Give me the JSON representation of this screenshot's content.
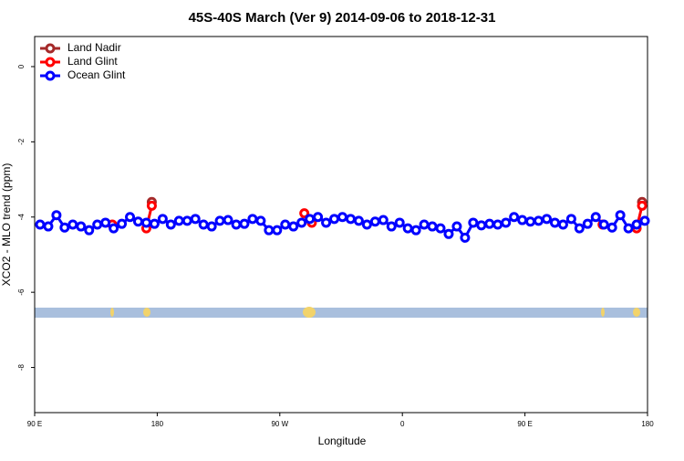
{
  "chart_data": {
    "type": "line",
    "title": "45S-40S March (Ver 9)   2014-09-06 to 2018-12-31",
    "x_label": "Longitude",
    "y_label": "XCO2 - MLO trend (ppm)",
    "xlim": [
      90,
      540
    ],
    "xticks": [
      {
        "value": 90,
        "label": "90 E"
      },
      180,
      {
        "value": 270,
        "label": "90 W"
      },
      {
        "value": 360,
        "label": "0"
      },
      {
        "value": 450,
        "label": "90 E"
      },
      {
        "value": 540,
        "label": "180"
      }
    ],
    "ylim": [
      -9.2,
      0.8
    ],
    "yticks": [
      0,
      -2,
      -4,
      -6,
      -8
    ],
    "legend": "top-left",
    "series": [
      {
        "name": "Land Nadir",
        "color": "#a52a2a",
        "x": [
          176,
          177,
          536
        ],
        "values": [
          -3.6,
          null,
          -3.6
        ]
      },
      {
        "name": "Land Glint",
        "color": "#ff0000",
        "x": [
          147,
          160,
          172,
          176,
          176.5,
          288,
          293.5,
          300,
          507,
          520,
          532,
          536
        ],
        "values": [
          -4.2,
          null,
          -4.3,
          -3.7,
          null,
          -3.9,
          -4.15,
          null,
          -4.2,
          null,
          -4.3,
          -3.7
        ]
      },
      {
        "name": "Ocean Glint",
        "color": "#0000ff",
        "x": [
          94,
          100,
          106,
          112,
          118,
          124,
          130,
          136,
          142,
          148,
          154,
          160,
          166,
          172,
          178,
          184,
          190,
          196,
          202,
          208,
          214,
          220,
          226,
          232,
          238,
          244,
          250,
          256,
          262,
          268,
          274,
          280,
          286,
          292,
          298,
          304,
          310,
          316,
          322,
          328,
          334,
          340,
          346,
          352,
          358,
          364,
          370,
          376,
          382,
          388,
          394,
          400,
          406,
          412,
          418,
          424,
          430,
          436,
          442,
          448,
          454,
          460,
          466,
          472,
          478,
          484,
          490,
          496,
          502,
          508,
          514,
          520,
          526,
          532,
          538
        ],
        "values": [
          -4.2,
          -4.25,
          -3.95,
          -4.28,
          -4.2,
          -4.25,
          -4.35,
          -4.2,
          -4.15,
          -4.3,
          -4.18,
          -4.0,
          -4.12,
          -4.15,
          -4.18,
          -4.05,
          -4.2,
          -4.1,
          -4.1,
          -4.05,
          -4.2,
          -4.25,
          -4.1,
          -4.08,
          -4.2,
          -4.18,
          -4.05,
          -4.1,
          -4.35,
          -4.35,
          -4.2,
          -4.25,
          -4.15,
          -4.05,
          -4.0,
          -4.15,
          -4.05,
          -4.0,
          -4.05,
          -4.1,
          -4.2,
          -4.12,
          -4.08,
          -4.25,
          -4.15,
          -4.3,
          -4.35,
          -4.2,
          -4.25,
          -4.3,
          -4.45,
          -4.25,
          -4.55,
          -4.15,
          -4.22,
          -4.18,
          -4.2,
          -4.15,
          -4.0,
          -4.08,
          -4.12,
          -4.1,
          -4.05,
          -4.15,
          -4.2,
          -4.05,
          -4.3,
          -4.18,
          -4.0,
          -4.2,
          -4.28,
          -3.95,
          -4.3,
          -4.2,
          -4.1
        ]
      }
    ]
  }
}
